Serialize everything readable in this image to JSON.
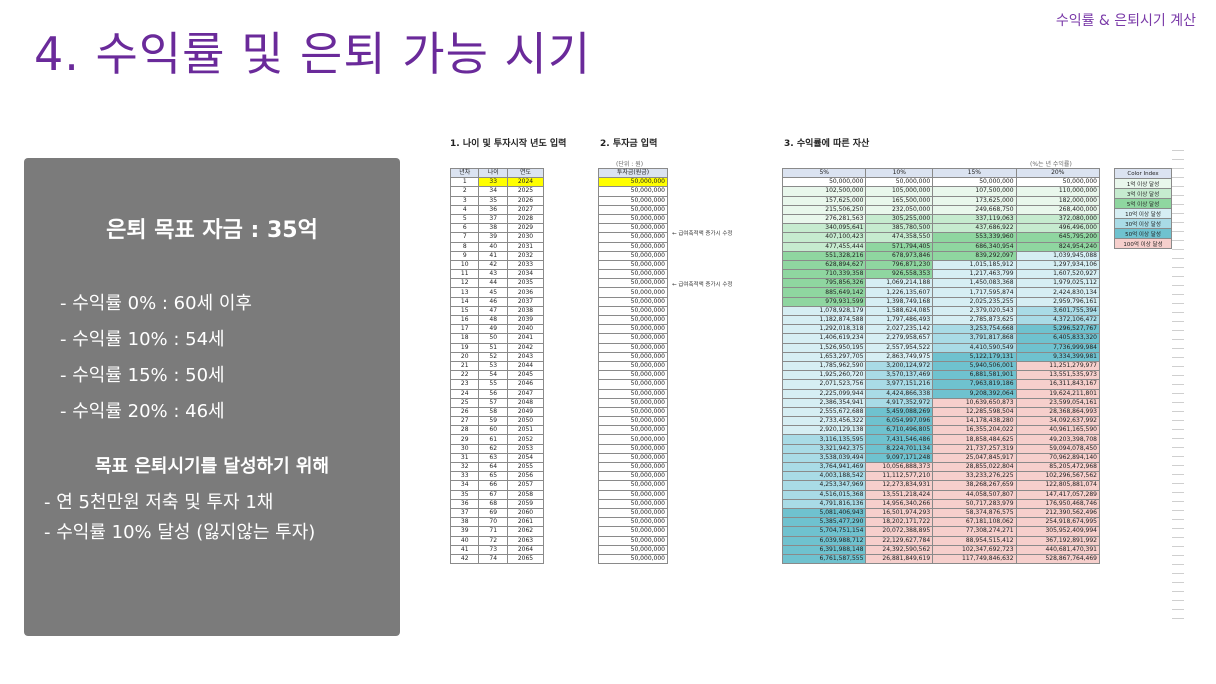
{
  "header_tag": "수익률 & 은퇴시기 계산",
  "title": "4. 수익률 및 은퇴 가능 시기",
  "panel": {
    "goal": "은퇴 목표 자금 : 35억",
    "rates": [
      "- 수익률 0% : 60세 이후",
      "- 수익률 10% : 54세",
      "- 수익률 15% : 50세",
      "- 수익률 20% : 46세"
    ],
    "subheading": "목표 은퇴시기를 달성하기 위해",
    "plans": [
      "- 연 5천만원 저축 및 투자 1채",
      "- 수익률 10% 달성 (잃지않는 투자)"
    ]
  },
  "sections": {
    "s1": "1. 나이 및 투자시작 년도 입력",
    "s2": "2. 투자금 입력",
    "s3": "3. 수익률에 따른 자산"
  },
  "unit_note": "(단위 : 원)",
  "rate_note": "(%는 년 수익률)",
  "side_note_1": "← 급여축적액 증가시 수정",
  "side_note_2": "← 급여축적액 증가시 수정",
  "table1": {
    "headers": [
      "년차",
      "나이",
      "연도"
    ],
    "rows": [
      [
        "1",
        "33",
        "2024"
      ],
      [
        "2",
        "34",
        "2025"
      ],
      [
        "3",
        "35",
        "2026"
      ],
      [
        "4",
        "36",
        "2027"
      ],
      [
        "5",
        "37",
        "2028"
      ],
      [
        "6",
        "38",
        "2029"
      ],
      [
        "7",
        "39",
        "2030"
      ],
      [
        "8",
        "40",
        "2031"
      ],
      [
        "9",
        "41",
        "2032"
      ],
      [
        "10",
        "42",
        "2033"
      ],
      [
        "11",
        "43",
        "2034"
      ],
      [
        "12",
        "44",
        "2035"
      ],
      [
        "13",
        "45",
        "2036"
      ],
      [
        "14",
        "46",
        "2037"
      ],
      [
        "15",
        "47",
        "2038"
      ],
      [
        "16",
        "48",
        "2039"
      ],
      [
        "17",
        "49",
        "2040"
      ],
      [
        "18",
        "50",
        "2041"
      ],
      [
        "19",
        "51",
        "2042"
      ],
      [
        "20",
        "52",
        "2043"
      ],
      [
        "21",
        "53",
        "2044"
      ],
      [
        "22",
        "54",
        "2045"
      ],
      [
        "23",
        "55",
        "2046"
      ],
      [
        "24",
        "56",
        "2047"
      ],
      [
        "25",
        "57",
        "2048"
      ],
      [
        "26",
        "58",
        "2049"
      ],
      [
        "27",
        "59",
        "2050"
      ],
      [
        "28",
        "60",
        "2051"
      ],
      [
        "29",
        "61",
        "2052"
      ],
      [
        "30",
        "62",
        "2053"
      ],
      [
        "31",
        "63",
        "2054"
      ],
      [
        "32",
        "64",
        "2055"
      ],
      [
        "33",
        "65",
        "2056"
      ],
      [
        "34",
        "66",
        "2057"
      ],
      [
        "35",
        "67",
        "2058"
      ],
      [
        "36",
        "68",
        "2059"
      ],
      [
        "37",
        "69",
        "2060"
      ],
      [
        "38",
        "70",
        "2061"
      ],
      [
        "39",
        "71",
        "2062"
      ],
      [
        "40",
        "72",
        "2063"
      ],
      [
        "41",
        "73",
        "2064"
      ],
      [
        "42",
        "74",
        "2065"
      ]
    ]
  },
  "table2": {
    "header": "투자금(원금)",
    "value": "50,000,000"
  },
  "table3": {
    "headers": [
      "5%",
      "10%",
      "15%",
      "20%"
    ],
    "rows": [
      [
        "50,000,000",
        "50,000,000",
        "50,000,000",
        "50,000,000"
      ],
      [
        "102,500,000",
        "105,000,000",
        "107,500,000",
        "110,000,000"
      ],
      [
        "157,625,000",
        "165,500,000",
        "173,625,000",
        "182,000,000"
      ],
      [
        "215,506,250",
        "232,050,000",
        "249,668,750",
        "268,400,000"
      ],
      [
        "276,281,563",
        "305,255,000",
        "337,119,063",
        "372,080,000"
      ],
      [
        "340,095,641",
        "385,780,500",
        "437,686,922",
        "496,496,000"
      ],
      [
        "407,100,423",
        "474,358,550",
        "553,339,960",
        "645,795,200"
      ],
      [
        "477,455,444",
        "571,794,405",
        "686,340,954",
        "824,954,240"
      ],
      [
        "551,328,216",
        "678,973,846",
        "839,292,097",
        "1,039,945,088"
      ],
      [
        "628,894,627",
        "796,871,230",
        "1,015,185,912",
        "1,297,934,106"
      ],
      [
        "710,339,358",
        "926,558,353",
        "1,217,463,799",
        "1,607,520,927"
      ],
      [
        "795,856,326",
        "1,069,214,188",
        "1,450,083,368",
        "1,979,025,112"
      ],
      [
        "885,649,142",
        "1,226,135,607",
        "1,717,595,874",
        "2,424,830,134"
      ],
      [
        "979,931,599",
        "1,398,749,168",
        "2,025,235,255",
        "2,959,796,161"
      ],
      [
        "1,078,928,179",
        "1,588,624,085",
        "2,379,020,543",
        "3,601,755,394"
      ],
      [
        "1,182,874,588",
        "1,797,486,493",
        "2,785,873,625",
        "4,372,106,472"
      ],
      [
        "1,292,018,318",
        "2,027,235,142",
        "3,253,754,668",
        "5,296,527,767"
      ],
      [
        "1,406,619,234",
        "2,279,958,657",
        "3,791,817,868",
        "6,405,833,320"
      ],
      [
        "1,526,950,195",
        "2,557,954,522",
        "4,410,590,549",
        "7,736,999,984"
      ],
      [
        "1,653,297,705",
        "2,863,749,975",
        "5,122,179,131",
        "9,334,399,981"
      ],
      [
        "1,785,962,590",
        "3,200,124,972",
        "5,940,506,001",
        "11,251,279,977"
      ],
      [
        "1,925,260,720",
        "3,570,137,469",
        "6,881,581,901",
        "13,551,535,973"
      ],
      [
        "2,071,523,756",
        "3,977,151,216",
        "7,963,819,186",
        "16,311,843,167"
      ],
      [
        "2,225,099,944",
        "4,424,866,338",
        "9,208,392,064",
        "19,624,211,801"
      ],
      [
        "2,386,354,941",
        "4,917,352,972",
        "10,639,650,873",
        "23,599,054,161"
      ],
      [
        "2,555,672,688",
        "5,459,088,269",
        "12,285,598,504",
        "28,368,864,993"
      ],
      [
        "2,733,456,322",
        "6,054,997,096",
        "14,178,438,280",
        "34,092,637,992"
      ],
      [
        "2,920,129,138",
        "6,710,496,805",
        "16,355,204,022",
        "40,961,165,590"
      ],
      [
        "3,116,135,595",
        "7,431,546,486",
        "18,858,484,625",
        "49,203,398,708"
      ],
      [
        "3,321,942,375",
        "8,224,701,134",
        "21,737,257,319",
        "59,094,078,450"
      ],
      [
        "3,538,039,494",
        "9,097,171,248",
        "25,047,845,917",
        "70,962,894,140"
      ],
      [
        "3,764,941,469",
        "10,056,888,373",
        "28,855,022,804",
        "85,205,472,968"
      ],
      [
        "4,003,188,542",
        "11,112,577,210",
        "33,233,276,225",
        "102,296,567,562"
      ],
      [
        "4,253,347,969",
        "12,273,834,931",
        "38,268,267,659",
        "122,805,881,074"
      ],
      [
        "4,516,015,368",
        "13,551,218,424",
        "44,058,507,807",
        "147,417,057,289"
      ],
      [
        "4,791,816,136",
        "14,956,340,266",
        "50,717,283,979",
        "176,950,468,746"
      ],
      [
        "5,081,406,943",
        "16,501,974,293",
        "58,374,876,575",
        "212,390,562,496"
      ],
      [
        "5,385,477,290",
        "18,202,171,722",
        "67,181,108,062",
        "254,918,674,995"
      ],
      [
        "5,704,751,154",
        "20,072,388,895",
        "77,308,274,271",
        "305,952,409,994"
      ],
      [
        "6,039,988,712",
        "22,129,627,784",
        "88,954,515,412",
        "367,192,891,992"
      ],
      [
        "6,391,988,148",
        "24,392,590,562",
        "102,347,692,723",
        "440,681,470,391"
      ],
      [
        "6,761,587,555",
        "26,881,849,619",
        "117,749,846,632",
        "528,867,764,469"
      ]
    ]
  },
  "legend": {
    "header": "Color Index",
    "items": [
      {
        "label": "1억 이상 달성",
        "color": "#e9f7ec"
      },
      {
        "label": "3억 이상 달성",
        "color": "#c6ebcf"
      },
      {
        "label": "5억 이상 달성",
        "color": "#8fd6a0"
      },
      {
        "label": "10억 이상 달성",
        "color": "#d6eef3"
      },
      {
        "label": "30억 이상 달성",
        "color": "#a9dbe6"
      },
      {
        "label": "50억 이상 달성",
        "color": "#6fc2cf"
      },
      {
        "label": "100억 이상 달성",
        "color": "#f6cfcc"
      }
    ]
  },
  "colors": {
    "title": "#6a2a9a",
    "panel": "#7b7b7b",
    "age_highlight": "#ffff00"
  }
}
